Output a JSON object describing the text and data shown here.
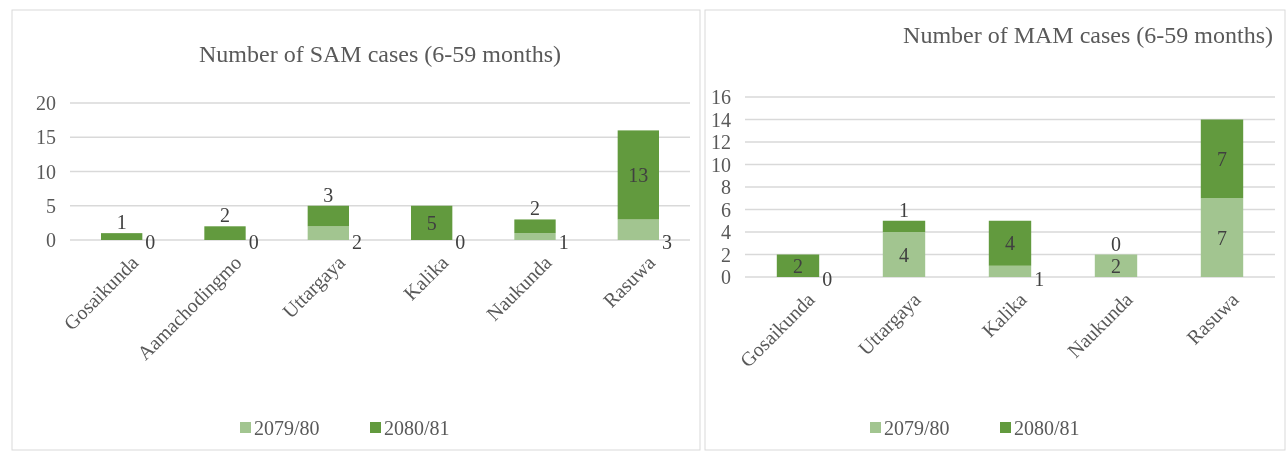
{
  "chart_data": [
    {
      "type": "bar",
      "title": "Number of SAM cases (6-59 months)",
      "categories": [
        "Gosaikunda",
        "Aamachodingmo",
        "Uttargaya",
        "Kalika",
        "Naukunda",
        "Rasuwa"
      ],
      "stacked": true,
      "series": [
        {
          "name": "2079/80",
          "color": "#a2c590",
          "values": [
            0,
            0,
            2,
            0,
            1,
            3
          ]
        },
        {
          "name": "2080/81",
          "color": "#629a3e",
          "values": [
            1,
            2,
            3,
            5,
            2,
            13
          ]
        }
      ],
      "ylim": [
        0,
        20
      ],
      "yticks": [
        0,
        5,
        10,
        15,
        20
      ],
      "grid": "y",
      "legend": "bottom",
      "data_labels": true
    },
    {
      "type": "bar",
      "title": "Number of  MAM cases (6-59 months)",
      "categories": [
        "Gosaikunda",
        "Uttargaya",
        "Kalika",
        "Naukunda",
        "Rasuwa"
      ],
      "stacked": true,
      "series": [
        {
          "name": "2079/80",
          "color": "#a2c590",
          "values": [
            0,
            4,
            1,
            2,
            7
          ]
        },
        {
          "name": "2080/81",
          "color": "#629a3e",
          "values": [
            2,
            1,
            4,
            0,
            7
          ]
        }
      ],
      "ylim": [
        0,
        16
      ],
      "yticks": [
        0,
        2,
        4,
        6,
        8,
        10,
        12,
        14,
        16
      ],
      "grid": "y",
      "legend": "bottom",
      "data_labels": true
    }
  ]
}
